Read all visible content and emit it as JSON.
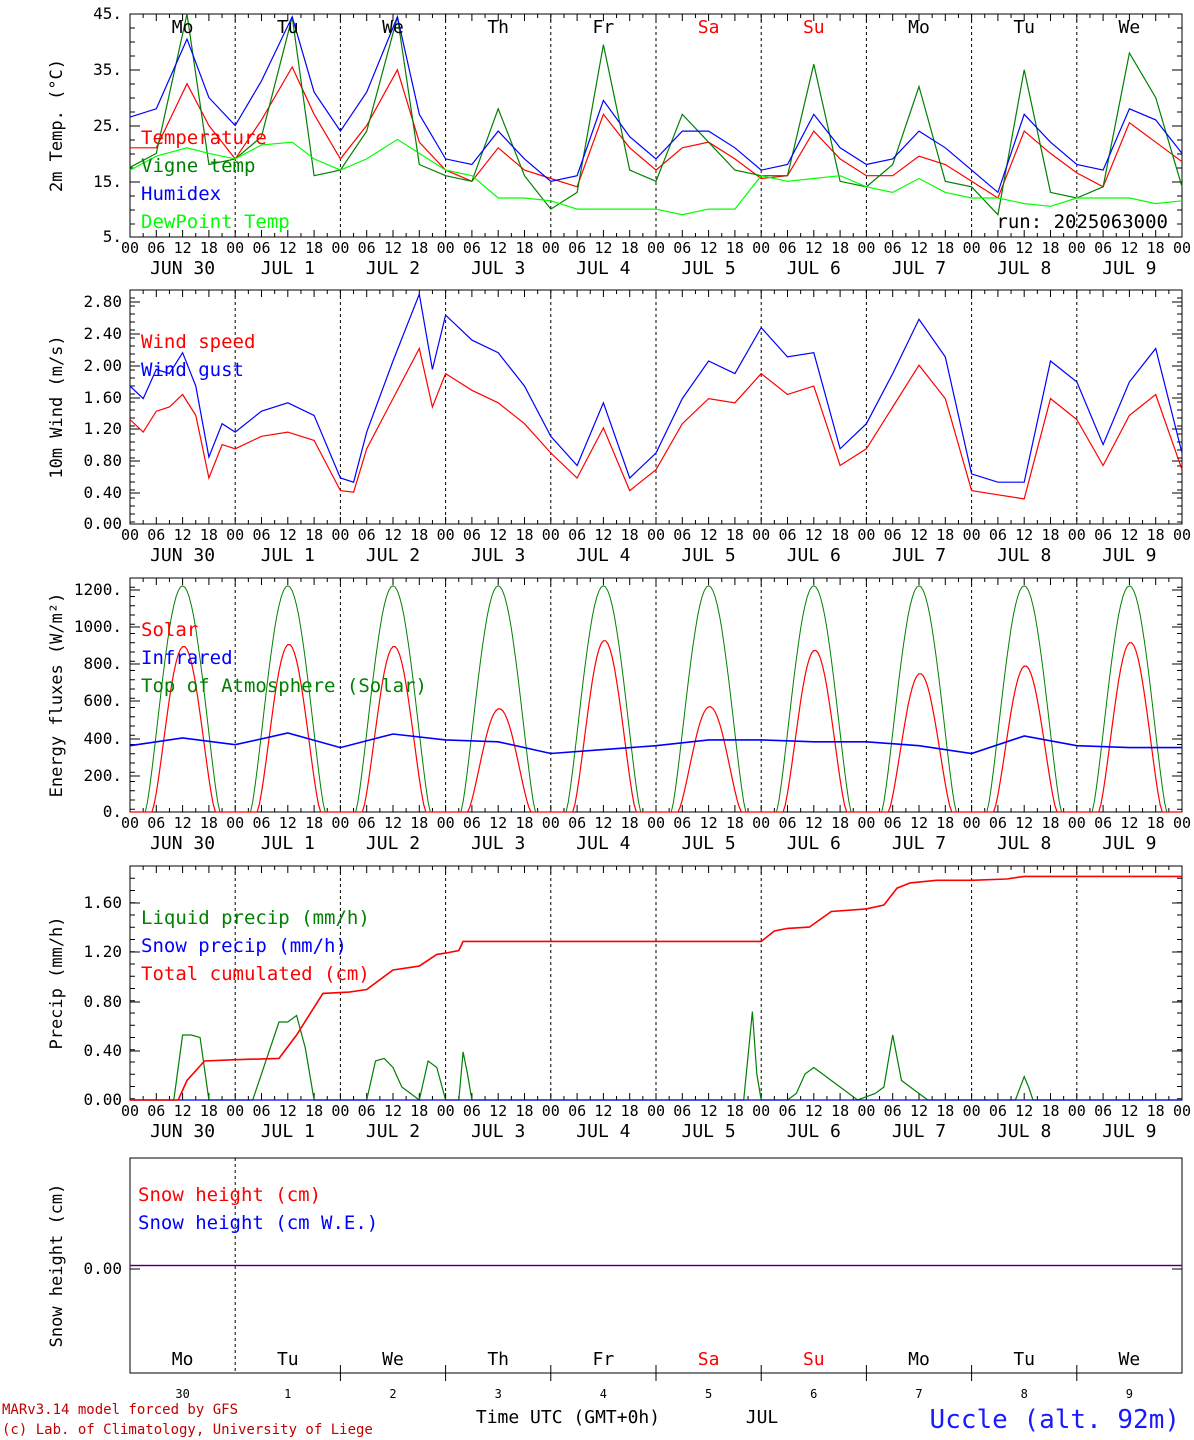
{
  "chart_data": [
    {
      "type": "line",
      "panel": "temperature",
      "ylabel": "2m Temp. (°C)",
      "yticks": [
        "45.",
        "35.",
        "25.",
        "15.",
        "5."
      ],
      "ylim": [
        5,
        45
      ],
      "run_label": "run: 2025063000",
      "x_unit": "hours since 2025-06-30 00 UTC",
      "legend": [
        "Temperature",
        "Vigne temp",
        "Humidex",
        "DewPoint Temp"
      ],
      "series": [
        {
          "name": "Temperature",
          "color": "#ff0000",
          "x": [
            0,
            6,
            13,
            18,
            24,
            30,
            37,
            42,
            48,
            54,
            61,
            66,
            72,
            78,
            84,
            90,
            96,
            102,
            108,
            114,
            120,
            126,
            132,
            138,
            144,
            150,
            156,
            162,
            168,
            174,
            180,
            186,
            192,
            198,
            204,
            210,
            216,
            222,
            228,
            234,
            240
          ],
          "values": [
            21,
            21,
            32.5,
            25,
            19,
            26,
            35.5,
            27,
            19,
            25,
            35,
            22,
            17,
            15,
            21,
            17,
            15.5,
            14,
            27,
            21,
            17,
            21,
            22,
            19,
            15.5,
            16,
            24,
            19,
            16,
            16,
            19.5,
            18,
            15,
            12,
            24,
            20,
            16.5,
            14,
            25.5,
            22,
            18.5
          ]
        },
        {
          "name": "Vigne temp",
          "color": "#008000",
          "x": [
            0,
            6,
            13,
            18,
            24,
            30,
            37,
            42,
            48,
            54,
            61,
            66,
            72,
            78,
            84,
            90,
            96,
            102,
            108,
            114,
            120,
            126,
            132,
            138,
            144,
            150,
            156,
            162,
            168,
            174,
            180,
            186,
            192,
            198,
            204,
            210,
            216,
            222,
            228,
            234,
            240
          ],
          "values": [
            17.5,
            20,
            45,
            18,
            19,
            23,
            44.5,
            16,
            17,
            24,
            44.5,
            18,
            16,
            15,
            28,
            16,
            10,
            13,
            39.5,
            17,
            15,
            27,
            22,
            17,
            16,
            16,
            36,
            15,
            14,
            18,
            32,
            15,
            14,
            9,
            35,
            13,
            12,
            14,
            38,
            30,
            14
          ]
        },
        {
          "name": "Humidex",
          "color": "#0000ff",
          "x": [
            0,
            6,
            13,
            18,
            24,
            30,
            37,
            42,
            48,
            54,
            61,
            66,
            72,
            78,
            84,
            90,
            96,
            102,
            108,
            114,
            120,
            126,
            132,
            138,
            144,
            150,
            156,
            162,
            168,
            174,
            180,
            186,
            192,
            198,
            204,
            210,
            216,
            222,
            228,
            234,
            240
          ],
          "values": [
            26.5,
            28,
            40.5,
            30,
            25,
            33,
            44.5,
            31,
            24,
            31,
            44.5,
            27,
            19,
            18,
            24,
            19,
            15,
            16,
            29.5,
            23,
            19,
            24,
            24,
            21,
            17,
            18,
            27,
            21,
            18,
            19,
            24,
            21,
            17,
            13,
            27,
            22,
            18,
            17,
            28,
            26,
            20
          ]
        },
        {
          "name": "DewPoint Temp",
          "color": "#00ff00",
          "x": [
            0,
            6,
            13,
            18,
            24,
            30,
            37,
            42,
            48,
            54,
            61,
            66,
            72,
            78,
            84,
            90,
            96,
            102,
            108,
            114,
            120,
            126,
            132,
            138,
            144,
            150,
            156,
            162,
            168,
            174,
            180,
            186,
            192,
            198,
            204,
            210,
            216,
            222,
            228,
            234,
            240
          ],
          "values": [
            17,
            19.5,
            21,
            20,
            19,
            21.5,
            22,
            19,
            17,
            19,
            22.5,
            20,
            17,
            16,
            12,
            12,
            11.5,
            10,
            10,
            10,
            10,
            9,
            10,
            10,
            16,
            15,
            15.5,
            16,
            14,
            13,
            15.5,
            13,
            12,
            12,
            11,
            10.5,
            12,
            12,
            12,
            11,
            11.5
          ]
        }
      ]
    },
    {
      "type": "line",
      "panel": "wind",
      "ylabel": "10m Wind (m/s)",
      "yticks": [
        "2.80",
        "2.40",
        "2.00",
        "1.60",
        "1.20",
        "0.80",
        "0.40",
        "0.00"
      ],
      "ylim": [
        0,
        2.8
      ],
      "legend": [
        "Wind speed",
        "Wind gust"
      ],
      "series": [
        {
          "name": "Wind speed",
          "color": "#ff0000",
          "x": [
            0,
            3,
            6,
            9,
            12,
            15,
            18,
            21,
            24,
            30,
            36,
            42,
            48,
            51,
            54,
            60,
            66,
            69,
            72,
            78,
            84,
            90,
            96,
            102,
            108,
            114,
            120,
            126,
            132,
            138,
            144,
            150,
            156,
            162,
            168,
            174,
            180,
            186,
            192,
            198,
            204,
            210,
            216,
            222,
            228,
            234,
            240
          ],
          "values": [
            1.25,
            1.1,
            1.35,
            1.4,
            1.55,
            1.3,
            0.55,
            0.95,
            0.9,
            1.05,
            1.1,
            1.0,
            0.4,
            0.38,
            0.9,
            1.5,
            2.1,
            1.4,
            1.8,
            1.6,
            1.45,
            1.2,
            0.85,
            0.55,
            1.15,
            0.4,
            0.65,
            1.2,
            1.5,
            1.45,
            1.8,
            1.55,
            1.65,
            0.7,
            0.9,
            1.4,
            1.9,
            1.5,
            0.4,
            0.35,
            0.3,
            1.5,
            1.25,
            0.7,
            1.3,
            1.55,
            0.65
          ]
        },
        {
          "name": "Wind gust",
          "color": "#0000ff",
          "x": [
            0,
            3,
            6,
            9,
            12,
            15,
            18,
            21,
            24,
            30,
            36,
            42,
            48,
            51,
            54,
            60,
            66,
            69,
            72,
            78,
            84,
            90,
            96,
            102,
            108,
            114,
            120,
            126,
            132,
            138,
            144,
            150,
            156,
            162,
            168,
            174,
            180,
            186,
            192,
            198,
            204,
            210,
            216,
            222,
            228,
            234,
            240
          ],
          "values": [
            1.65,
            1.5,
            1.85,
            1.8,
            2.05,
            1.65,
            0.8,
            1.2,
            1.1,
            1.35,
            1.45,
            1.3,
            0.55,
            0.5,
            1.1,
            1.95,
            2.75,
            1.85,
            2.5,
            2.2,
            2.05,
            1.65,
            1.05,
            0.7,
            1.45,
            0.55,
            0.85,
            1.5,
            1.95,
            1.8,
            2.35,
            2.0,
            2.05,
            0.9,
            1.2,
            1.8,
            2.45,
            2.0,
            0.6,
            0.5,
            0.5,
            1.95,
            1.7,
            0.95,
            1.7,
            2.1,
            0.85
          ]
        }
      ]
    },
    {
      "type": "line",
      "panel": "energy",
      "ylabel": "Energy fluxes (W/m²)",
      "yticks": [
        "1200.",
        "1000.",
        "800.",
        "600.",
        "400.",
        "200.",
        "0."
      ],
      "ylim": [
        0,
        1200
      ],
      "legend": [
        "Solar",
        "Infrared",
        "Top of Atmosphere (Solar)"
      ],
      "day_peaks_solar": [
        850,
        860,
        850,
        530,
        880,
        540,
        830,
        710,
        750,
        870
      ],
      "toa_peak": 1160,
      "infrared": {
        "x": [
          0,
          12,
          24,
          36,
          48,
          60,
          72,
          84,
          96,
          108,
          120,
          132,
          144,
          156,
          168,
          180,
          192,
          204,
          216,
          228,
          240
        ],
        "values": [
          340,
          380,
          345,
          405,
          330,
          400,
          370,
          360,
          300,
          320,
          340,
          370,
          370,
          360,
          360,
          340,
          300,
          390,
          340,
          330,
          330
        ]
      },
      "series": [
        {
          "name": "Solar",
          "color": "#ff0000"
        },
        {
          "name": "Infrared",
          "color": "#0000ff"
        },
        {
          "name": "Top of Atmosphere (Solar)",
          "color": "#008000"
        }
      ]
    },
    {
      "type": "line",
      "panel": "precip",
      "ylabel": "Precip (mm/h)",
      "yticks": [
        "1.60",
        "1.20",
        "0.80",
        "0.40",
        "0.00"
      ],
      "ylim": [
        0,
        1.8
      ],
      "legend": [
        "Liquid precip (mm/h)",
        "Snow precip (mm/h)",
        "Total cumulated (cm)"
      ],
      "series": [
        {
          "name": "Liquid precip (mm/h)",
          "color": "#008000",
          "x": [
            0,
            10,
            12,
            14,
            16,
            18,
            20,
            28,
            34,
            36,
            38,
            40,
            42,
            44,
            46,
            48,
            54,
            56,
            58,
            60,
            62,
            66,
            68,
            70,
            72,
            75,
            76,
            77,
            78,
            79,
            80,
            140,
            142,
            143,
            144,
            145,
            146,
            150,
            152,
            154,
            156,
            158,
            160,
            162,
            166,
            170,
            172,
            174,
            176,
            178,
            180,
            182,
            186,
            188,
            192,
            202,
            204,
            205,
            206,
            210,
            240
          ],
          "values": [
            0,
            0,
            0.5,
            0.5,
            0.48,
            0,
            0,
            0,
            0.6,
            0.6,
            0.65,
            0.4,
            0,
            0,
            0,
            0,
            0,
            0.3,
            0.32,
            0.25,
            0.1,
            0,
            0.3,
            0.25,
            0,
            0,
            0.37,
            0.2,
            0,
            0,
            0,
            0,
            0.68,
            0.2,
            0,
            0,
            0,
            0,
            0.05,
            0.2,
            0.25,
            0.2,
            0.15,
            0.1,
            0,
            0.05,
            0.1,
            0.5,
            0.15,
            0.1,
            0.05,
            0,
            0,
            0,
            0,
            0,
            0.18,
            0.1,
            0,
            0,
            0
          ]
        },
        {
          "name": "Snow precip (mm/h)",
          "color": "#0000ff",
          "x": [
            0,
            240
          ],
          "values": [
            0,
            0
          ]
        },
        {
          "name": "Total cumulated (cm)",
          "color": "#ff0000",
          "x": [
            0,
            11,
            13,
            17,
            24,
            34,
            38,
            44,
            50,
            54,
            60,
            66,
            70,
            72,
            75,
            76,
            144,
            147,
            150,
            155,
            160,
            168,
            172,
            175,
            178,
            184,
            192,
            200,
            204,
            240
          ],
          "values": [
            0,
            0,
            0.15,
            0.3,
            0.31,
            0.32,
            0.5,
            0.82,
            0.83,
            0.85,
            1.0,
            1.03,
            1.12,
            1.13,
            1.15,
            1.22,
            1.22,
            1.3,
            1.32,
            1.33,
            1.45,
            1.47,
            1.5,
            1.63,
            1.67,
            1.69,
            1.69,
            1.7,
            1.72,
            1.72
          ]
        }
      ]
    },
    {
      "type": "line",
      "panel": "snow",
      "ylabel": "Snow height (cm)",
      "yticks": [
        "0.00"
      ],
      "ylim": [
        -1,
        1
      ],
      "legend": [
        "Snow height (cm)",
        "Snow height (cm W.E.)"
      ],
      "series": [
        {
          "name": "Snow height (cm)",
          "color": "#ff0000",
          "x": [
            0,
            240
          ],
          "values": [
            0,
            0
          ]
        },
        {
          "name": "Snow height (cm W.E.)",
          "color": "#0000ff",
          "x": [
            0,
            240
          ],
          "values": [
            0,
            0
          ]
        }
      ]
    }
  ],
  "days": [
    {
      "short": "Mo",
      "date": "JUN 30",
      "num": "30",
      "color": "#000000"
    },
    {
      "short": "Tu",
      "date": "JUL  1",
      "num": "1",
      "color": "#000000"
    },
    {
      "short": "We",
      "date": "JUL  2",
      "num": "2",
      "color": "#000000"
    },
    {
      "short": "Th",
      "date": "JUL  3",
      "num": "3",
      "color": "#000000"
    },
    {
      "short": "Fr",
      "date": "JUL  4",
      "num": "4",
      "color": "#000000"
    },
    {
      "short": "Sa",
      "date": "JUL  5",
      "num": "5",
      "color": "#ff0000"
    },
    {
      "short": "Su",
      "date": "JUL  6",
      "num": "6",
      "color": "#ff0000"
    },
    {
      "short": "Mo",
      "date": "JUL  7",
      "num": "7",
      "color": "#000000"
    },
    {
      "short": "Tu",
      "date": "JUL  8",
      "num": "8",
      "color": "#000000"
    },
    {
      "short": "We",
      "date": "JUL  9",
      "num": "9",
      "color": "#000000"
    }
  ],
  "hour_ticks": [
    "00",
    "06",
    "12",
    "18"
  ],
  "footer": {
    "line1": "MARv3.14 model forced by GFS",
    "line2": "(c) Lab. of Climatology, University of Liege",
    "time_label": "Time UTC (GMT+0h)",
    "month_label": "JUL",
    "station": "Uccle (alt. 92m)"
  },
  "colors": {
    "red": "#ff0000",
    "green": "#008000",
    "blue": "#0000ff",
    "lime": "#00ff00",
    "footer": "#c00000",
    "station": "#1a1aff"
  }
}
